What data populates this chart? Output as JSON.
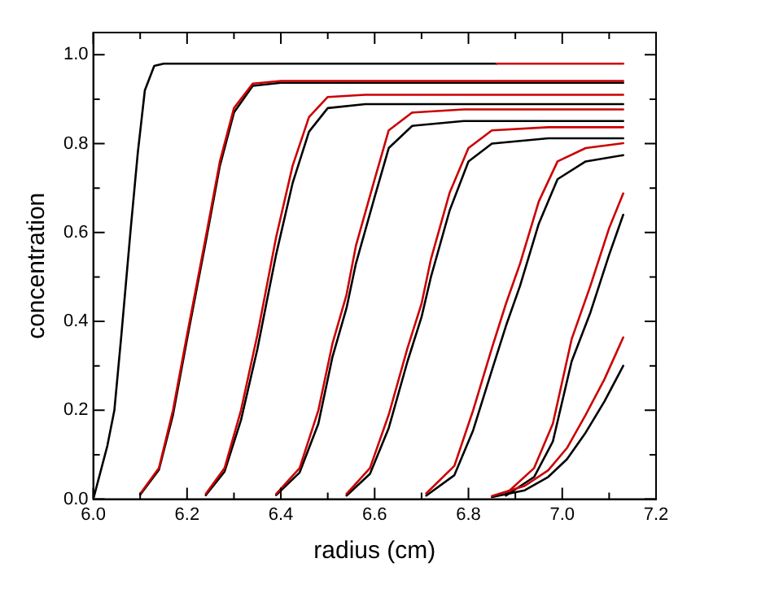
{
  "chart_data": {
    "type": "line",
    "xlabel": "radius (cm)",
    "ylabel": "concentration",
    "xlim": [
      6.0,
      7.2
    ],
    "ylim": [
      0,
      1.05
    ],
    "xticks": [
      {
        "value": 6.0,
        "label": "6.0"
      },
      {
        "value": 6.1,
        "label": null
      },
      {
        "value": 6.2,
        "label": "6.2"
      },
      {
        "value": 6.3,
        "label": null
      },
      {
        "value": 6.4,
        "label": "6.4"
      },
      {
        "value": 6.5,
        "label": null
      },
      {
        "value": 6.6,
        "label": "6.6"
      },
      {
        "value": 6.7,
        "label": null
      },
      {
        "value": 6.8,
        "label": "6.8"
      },
      {
        "value": 6.9,
        "label": null
      },
      {
        "value": 7.0,
        "label": "7.0"
      },
      {
        "value": 7.1,
        "label": null
      },
      {
        "value": 7.2,
        "label": "7.2"
      }
    ],
    "yticks": [
      {
        "value": 0,
        "label": "0.0"
      },
      {
        "value": 0.1,
        "label": null
      },
      {
        "value": 0.2,
        "label": "0.2"
      },
      {
        "value": 0.3,
        "label": null
      },
      {
        "value": 0.4,
        "label": "0.4"
      },
      {
        "value": 0.5,
        "label": null
      },
      {
        "value": 0.6,
        "label": "0.6"
      },
      {
        "value": 0.7,
        "label": null
      },
      {
        "value": 0.8,
        "label": "0.8"
      },
      {
        "value": 0.9,
        "label": null
      },
      {
        "value": 1.0,
        "label": "1.0"
      }
    ],
    "grid": false,
    "legend": false,
    "marker": "none",
    "line_style": "solid",
    "series": [
      {
        "color": "#000000",
        "x": [
          6.0,
          6.03,
          6.045,
          6.06,
          6.07,
          6.08,
          6.095,
          6.11,
          6.13,
          6.15,
          6.86
        ],
        "values": [
          0,
          0.12,
          0.2,
          0.37,
          0.49,
          0.61,
          0.78,
          0.92,
          0.975,
          0.98,
          0.98
        ]
      },
      {
        "color": "#cc0000",
        "x": [
          6.86,
          7.13
        ],
        "values": [
          0.98,
          0.98
        ]
      },
      {
        "color": "#000000",
        "x": [
          6.1,
          6.14,
          6.17,
          6.2,
          6.22,
          6.24,
          6.27,
          6.3,
          6.34,
          6.4,
          7.13
        ],
        "values": [
          0.01,
          0.066,
          0.19,
          0.36,
          0.47,
          0.58,
          0.75,
          0.87,
          0.93,
          0.937,
          0.937
        ]
      },
      {
        "color": "#cc0000",
        "x": [
          6.1,
          6.14,
          6.17,
          6.2,
          6.22,
          6.24,
          6.27,
          6.3,
          6.34,
          6.4,
          7.13
        ],
        "values": [
          0.012,
          0.07,
          0.2,
          0.37,
          0.48,
          0.59,
          0.76,
          0.88,
          0.935,
          0.941,
          0.941
        ]
      },
      {
        "color": "#000000",
        "x": [
          6.24,
          6.28,
          6.315,
          6.35,
          6.37,
          6.39,
          6.425,
          6.46,
          6.5,
          6.58,
          7.13
        ],
        "values": [
          0.009,
          0.062,
          0.178,
          0.338,
          0.445,
          0.551,
          0.711,
          0.827,
          0.88,
          0.889,
          0.889
        ]
      },
      {
        "color": "#cc0000",
        "x": [
          6.24,
          6.28,
          6.315,
          6.35,
          6.37,
          6.39,
          6.425,
          6.46,
          6.5,
          6.58,
          7.13
        ],
        "values": [
          0.012,
          0.07,
          0.2,
          0.37,
          0.48,
          0.59,
          0.75,
          0.86,
          0.905,
          0.91,
          0.91
        ]
      },
      {
        "color": "#000000",
        "x": [
          6.39,
          6.44,
          6.48,
          6.51,
          6.54,
          6.56,
          6.6,
          6.63,
          6.68,
          6.79,
          7.13
        ],
        "values": [
          0.009,
          0.06,
          0.17,
          0.32,
          0.43,
          0.53,
          0.68,
          0.79,
          0.84,
          0.851,
          0.851
        ]
      },
      {
        "color": "#cc0000",
        "x": [
          6.39,
          6.44,
          6.48,
          6.51,
          6.54,
          6.56,
          6.6,
          6.63,
          6.68,
          6.79,
          7.13
        ],
        "values": [
          0.012,
          0.07,
          0.2,
          0.35,
          0.46,
          0.57,
          0.72,
          0.83,
          0.87,
          0.877,
          0.877
        ]
      },
      {
        "color": "#000000",
        "x": [
          6.54,
          6.59,
          6.63,
          6.67,
          6.7,
          6.72,
          6.76,
          6.8,
          6.85,
          6.97,
          7.13
        ],
        "values": [
          0.008,
          0.057,
          0.16,
          0.31,
          0.41,
          0.5,
          0.65,
          0.76,
          0.8,
          0.812,
          0.812
        ]
      },
      {
        "color": "#cc0000",
        "x": [
          6.54,
          6.59,
          6.63,
          6.67,
          6.7,
          6.72,
          6.76,
          6.8,
          6.85,
          6.97,
          7.13
        ],
        "values": [
          0.012,
          0.07,
          0.19,
          0.34,
          0.44,
          0.54,
          0.69,
          0.79,
          0.83,
          0.837,
          0.837
        ]
      },
      {
        "color": "#000000",
        "x": [
          6.71,
          6.77,
          6.81,
          6.85,
          6.88,
          6.91,
          6.95,
          6.99,
          7.05,
          7.13
        ],
        "values": [
          0.008,
          0.054,
          0.155,
          0.29,
          0.39,
          0.48,
          0.62,
          0.72,
          0.76,
          0.774
        ]
      },
      {
        "color": "#cc0000",
        "x": [
          6.71,
          6.77,
          6.81,
          6.85,
          6.88,
          6.91,
          6.95,
          6.99,
          7.05,
          7.13
        ],
        "values": [
          0.013,
          0.075,
          0.2,
          0.34,
          0.44,
          0.53,
          0.67,
          0.76,
          0.79,
          0.801
        ]
      },
      {
        "color": "#000000",
        "x": [
          6.88,
          6.94,
          6.98,
          7.02,
          7.06,
          7.1,
          7.13
        ],
        "values": [
          0.008,
          0.05,
          0.13,
          0.31,
          0.42,
          0.55,
          0.64
        ]
      },
      {
        "color": "#cc0000",
        "x": [
          6.88,
          6.94,
          6.98,
          7.02,
          7.06,
          7.1,
          7.13
        ],
        "values": [
          0.012,
          0.07,
          0.17,
          0.36,
          0.48,
          0.61,
          0.688
        ]
      },
      {
        "color": "#000000",
        "x": [
          6.85,
          6.92,
          6.97,
          7.01,
          7.05,
          7.09,
          7.13
        ],
        "values": [
          0.005,
          0.02,
          0.05,
          0.09,
          0.15,
          0.22,
          0.3
        ]
      },
      {
        "color": "#cc0000",
        "x": [
          6.85,
          6.92,
          6.97,
          7.01,
          7.05,
          7.09,
          7.13
        ],
        "values": [
          0.007,
          0.03,
          0.065,
          0.115,
          0.19,
          0.27,
          0.364
        ]
      }
    ]
  }
}
